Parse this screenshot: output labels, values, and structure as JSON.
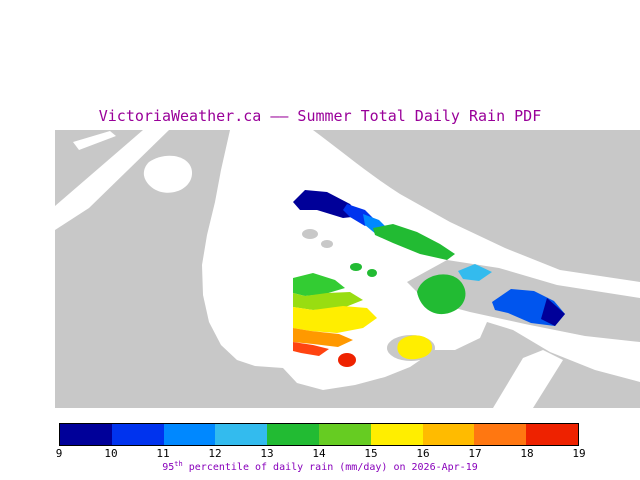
{
  "title": "VictoriaWeather.ca –– Summer Total Daily Rain PDF",
  "colors": {
    "title_text": "#990099",
    "caption_text": "#8800BB",
    "tick_text": "#000000",
    "land": "#C8C8C8",
    "water": "#FFFFFF",
    "colorbar_border": "#000000"
  },
  "colorbar": {
    "ticks": [
      "9",
      "10",
      "11",
      "12",
      "13",
      "14",
      "15",
      "16",
      "17",
      "18",
      "19"
    ],
    "colors": [
      "#000099",
      "#0033EE",
      "#0088FF",
      "#33BBEE",
      "#22BB33",
      "#66CC22",
      "#FFEE00",
      "#FFBB00",
      "#FF7711",
      "#EE2200"
    ],
    "caption_prefix": "95",
    "caption_sup": "th",
    "caption_suffix": " percentile of daily rain (mm/day) on 2026-Apr-19"
  }
}
